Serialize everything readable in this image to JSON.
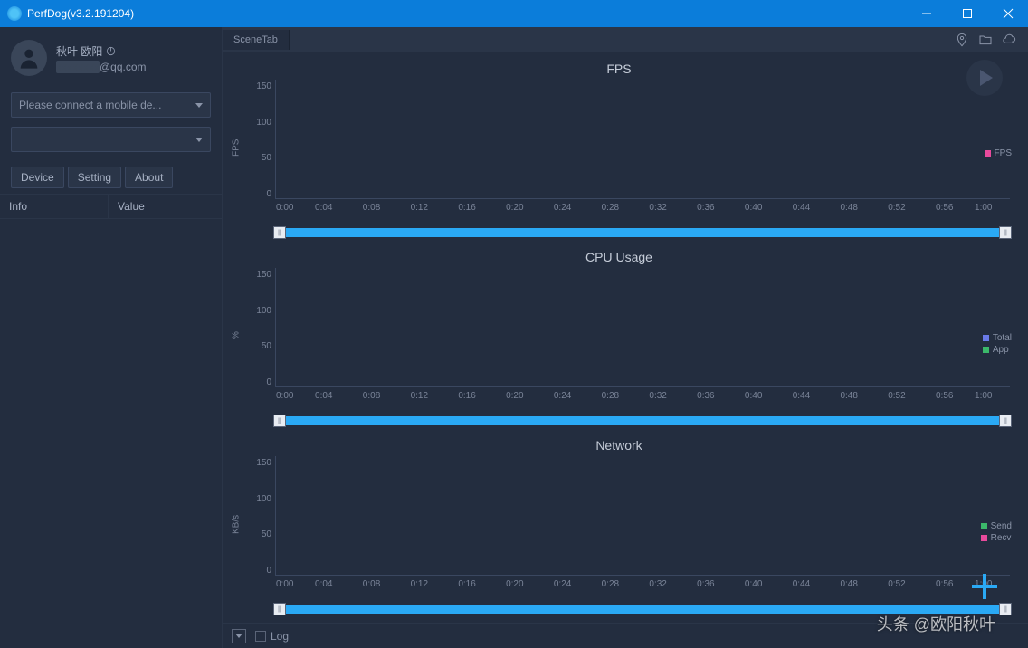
{
  "titlebar": {
    "title": "PerfDog(v3.2.191204)"
  },
  "user": {
    "name": "秋叶 欧阳",
    "email": "@qq.com",
    "email_prefix_hidden": true
  },
  "sidebar": {
    "device_dropdown": "Please connect a mobile de...",
    "second_dropdown": "",
    "tabs": {
      "device": "Device",
      "setting": "Setting",
      "about": "About"
    },
    "info_headers": {
      "info": "Info",
      "value": "Value"
    }
  },
  "main_top": {
    "scene_tab": "SceneTab"
  },
  "charts": [
    {
      "title": "FPS",
      "ylabel": "FPS",
      "ylim": [
        0,
        150
      ],
      "yticks": [
        150,
        100,
        50,
        0
      ],
      "xticks": [
        "0:00",
        "0:04",
        "0:08",
        "0:12",
        "0:16",
        "0:20",
        "0:24",
        "0:28",
        "0:32",
        "0:36",
        "0:40",
        "0:44",
        "0:48",
        "0:52",
        "0:56",
        "1:00"
      ],
      "marker_pos_pct": 12.2,
      "legend": [
        {
          "label": "FPS",
          "color": "#e84a9c"
        }
      ],
      "legend_top_pct": 58,
      "slider_color": "#2aa9f5"
    },
    {
      "title": "CPU Usage",
      "ylabel": "%",
      "ylim": [
        0,
        150
      ],
      "yticks": [
        150,
        100,
        50,
        0
      ],
      "xticks": [
        "0:00",
        "0:04",
        "0:08",
        "0:12",
        "0:16",
        "0:20",
        "0:24",
        "0:28",
        "0:32",
        "0:36",
        "0:40",
        "0:44",
        "0:48",
        "0:52",
        "0:56",
        "1:00"
      ],
      "marker_pos_pct": 12.2,
      "legend": [
        {
          "label": "Total",
          "color": "#6a7ae8"
        },
        {
          "label": "App",
          "color": "#3bb86a"
        }
      ],
      "legend_top_pct": 55,
      "slider_color": "#2aa9f5"
    },
    {
      "title": "Network",
      "ylabel": "KB/s",
      "ylim": [
        0,
        150
      ],
      "yticks": [
        150,
        100,
        50,
        0
      ],
      "xticks": [
        "0:00",
        "0:04",
        "0:08",
        "0:12",
        "0:16",
        "0:20",
        "0:24",
        "0:28",
        "0:32",
        "0:36",
        "0:40",
        "0:44",
        "0:48",
        "0:52",
        "0:56",
        "1:00"
      ],
      "marker_pos_pct": 12.2,
      "legend": [
        {
          "label": "Send",
          "color": "#3bb86a"
        },
        {
          "label": "Recv",
          "color": "#e84a9c"
        }
      ],
      "legend_top_pct": 55,
      "slider_color": "#2aa9f5"
    }
  ],
  "bottom": {
    "log": "Log"
  },
  "watermark": "头条 @欧阳秋叶",
  "colors": {
    "titlebar_bg": "#0b7dda",
    "window_bg": "#232d3f",
    "panel_bg": "#2a3548",
    "border": "#3a4760",
    "text_muted": "#8a94a8",
    "slider": "#2aa9f5"
  }
}
